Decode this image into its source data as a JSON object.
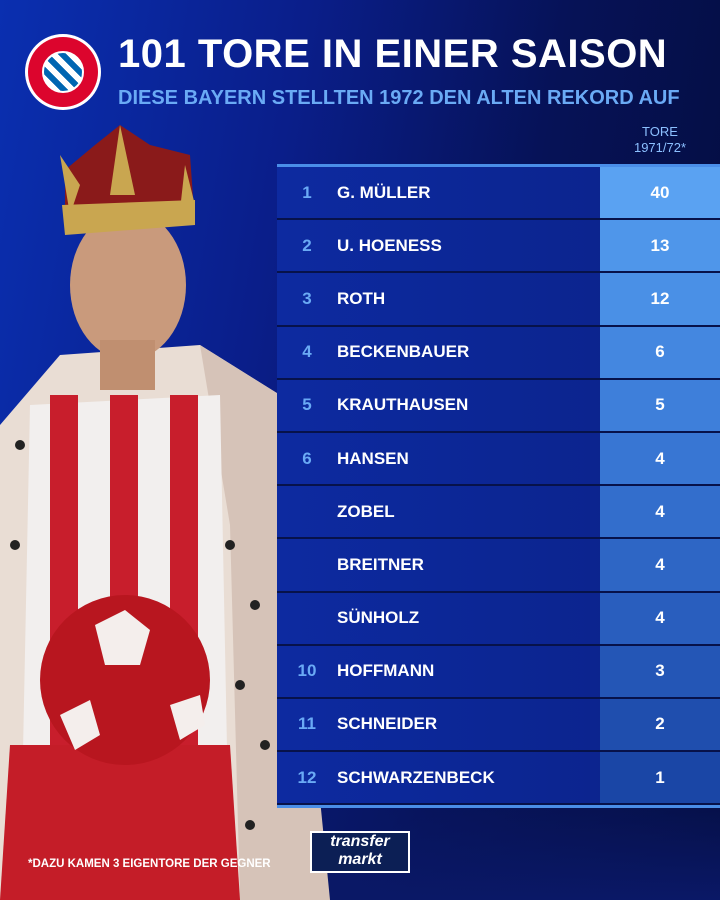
{
  "header": {
    "title": "101 TORE IN EINER SAISON",
    "subtitle": "DIESE BAYERN STELLTEN 1972 DEN ALTEN REKORD AUF",
    "logo_text": "FC BAYERN MÜNCHEN"
  },
  "table": {
    "column_header_line1": "TORE",
    "column_header_line2": "1971/72*",
    "rows": [
      {
        "rank": "1",
        "name": "G. MÜLLER",
        "goals": "40",
        "color": "#5aa2f2"
      },
      {
        "rank": "2",
        "name": "U. HOENESS",
        "goals": "13",
        "color": "#4f96ea"
      },
      {
        "rank": "3",
        "name": "ROTH",
        "goals": "12",
        "color": "#4a90e6"
      },
      {
        "rank": "4",
        "name": "BECKENBAUER",
        "goals": "6",
        "color": "#4487e0"
      },
      {
        "rank": "5",
        "name": "KRAUTHAUSEN",
        "goals": "5",
        "color": "#3e7fda"
      },
      {
        "rank": "6",
        "name": "HANSEN",
        "goals": "4",
        "color": "#3876d3"
      },
      {
        "rank": "",
        "name": "ZOBEL",
        "goals": "4",
        "color": "#336ecc"
      },
      {
        "rank": "",
        "name": "BREITNER",
        "goals": "4",
        "color": "#2e66c5"
      },
      {
        "rank": "",
        "name": "SÜNHOLZ",
        "goals": "4",
        "color": "#295ebe"
      },
      {
        "rank": "10",
        "name": "HOFFMANN",
        "goals": "3",
        "color": "#2456b6"
      },
      {
        "rank": "11",
        "name": "SCHNEIDER",
        "goals": "2",
        "color": "#1f4eae"
      },
      {
        "rank": "12",
        "name": "SCHWARZENBECK",
        "goals": "1",
        "color": "#1a46a6"
      }
    ]
  },
  "footer": {
    "note": "*DAZU KAMEN 3 EIGENTORE DER GEGNER",
    "brand_line1": "transfer",
    "brand_line2": "markt"
  }
}
